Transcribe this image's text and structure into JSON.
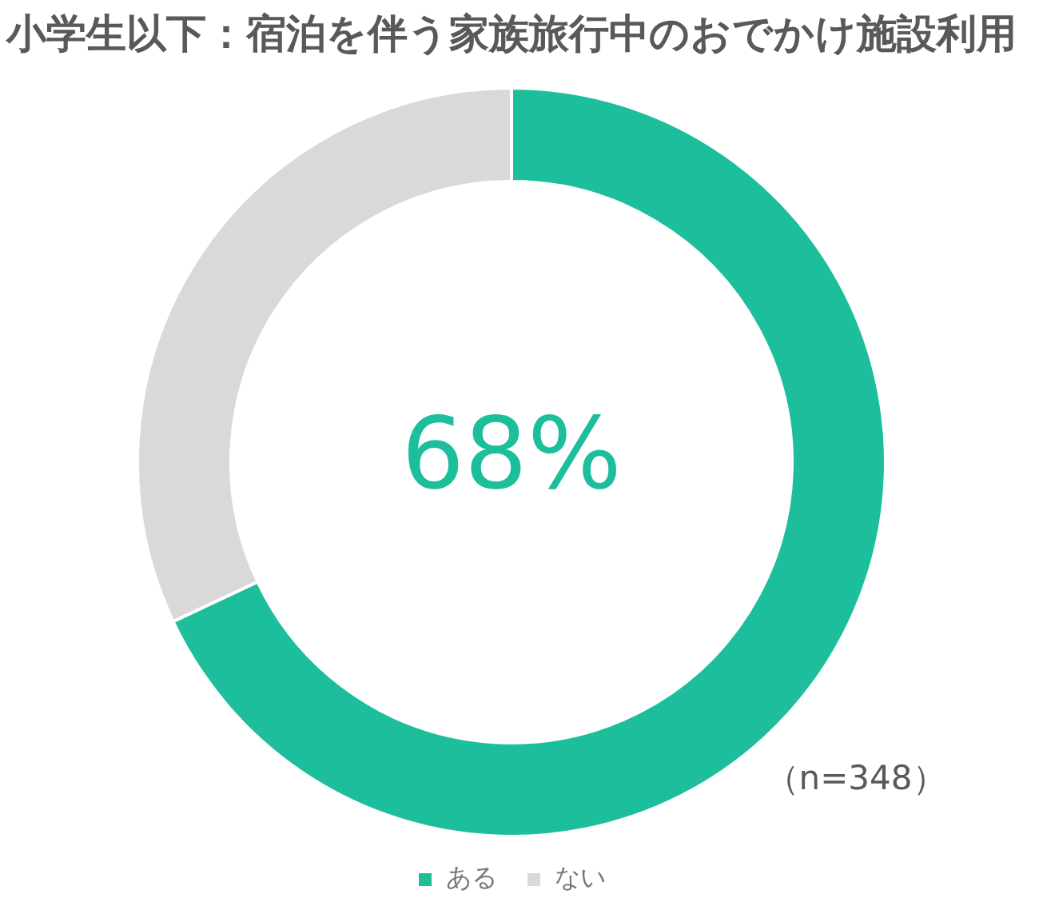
{
  "chart_data": {
    "type": "donut",
    "title": "小学生以下：宿泊を伴う家族旅行中のおでかけ施設利用",
    "categories": [
      "ある",
      "ない"
    ],
    "values": [
      68,
      32
    ],
    "colors": [
      "#1dbe9b",
      "#d9d9d9"
    ],
    "annotations": [
      "68%",
      "（n=348）"
    ],
    "legend": "bottom"
  }
}
